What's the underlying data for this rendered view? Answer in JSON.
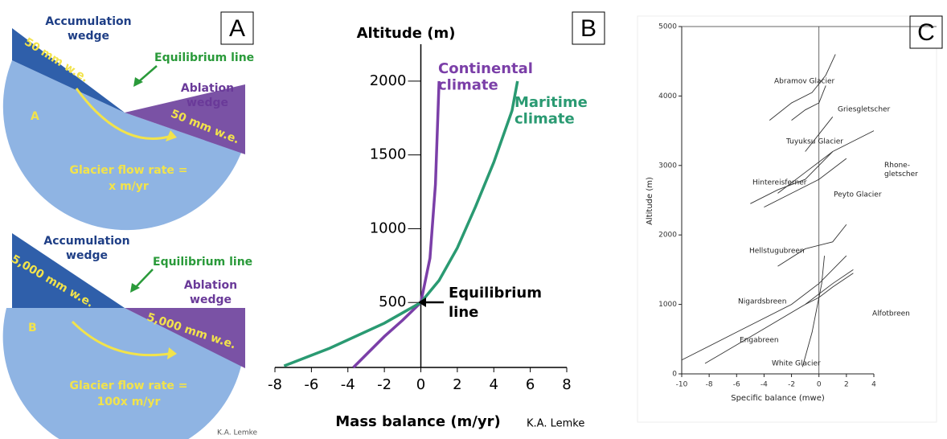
{
  "panel_labels": [
    "A",
    "B",
    "C"
  ],
  "panel_a": {
    "top": {
      "accumulation": [
        "Accumulation",
        "wedge"
      ],
      "accumulation_amount": "50 mm w.e.",
      "equilibrium": "Equilibrium line",
      "ablation": [
        "Ablation",
        "wedge"
      ],
      "ablation_amount": "50 mm w.e.",
      "letter": "A",
      "flow": [
        "Glacier flow rate =",
        "x m/yr"
      ]
    },
    "bottom": {
      "accumulation": [
        "Accumulation",
        "wedge"
      ],
      "accumulation_amount": "5,000 mm w.e.",
      "equilibrium": "Equilibrium line",
      "ablation": [
        "Ablation",
        "wedge"
      ],
      "ablation_amount": "5,000 mm w.e.",
      "letter": "B",
      "flow": [
        "Glacier flow rate =",
        "100x m/yr"
      ]
    },
    "credit": "K.A. Lemke"
  },
  "chart_data": [
    {
      "type": "line",
      "y_label": "Altitude (m)",
      "x_label": "Mass balance (m/yr)",
      "credit": "K.A. Lemke",
      "annotation": [
        "Equilibrium",
        "line"
      ],
      "xlim": [
        -8,
        8
      ],
      "ylim": [
        60,
        2250
      ],
      "xticks": [
        -8,
        -6,
        -4,
        -2,
        0,
        2,
        4,
        6,
        8
      ],
      "yticks": [
        500,
        1000,
        1500,
        2000
      ],
      "series": [
        {
          "name": "Continental climate",
          "color": "#7b3fa8",
          "x": [
            -3.7,
            -2,
            -1,
            0,
            0.5,
            0.8,
            1
          ],
          "values": [
            60,
            270,
            380,
            500,
            800,
            1300,
            2000
          ]
        },
        {
          "name": "Maritime climate",
          "color": "#2a9a72",
          "x": [
            -7.5,
            -5,
            -2,
            0,
            1,
            2,
            3,
            4,
            5,
            5.3
          ],
          "values": [
            70,
            190,
            360,
            500,
            650,
            870,
            1150,
            1450,
            1800,
            2000
          ]
        }
      ]
    },
    {
      "type": "line",
      "y_label": "Altitude (m)",
      "x_label": "Specific balance (mwe)",
      "xlim": [
        -10,
        4
      ],
      "ylim": [
        0,
        5000
      ],
      "xticks": [
        -10,
        -8,
        -6,
        -4,
        -2,
        0,
        2,
        4
      ],
      "yticks": [
        0,
        1000,
        2000,
        3000,
        4000,
        5000
      ],
      "series": [
        {
          "name": "Abramov Glacier",
          "color": "#333333",
          "x": [
            -3.6,
            -2,
            -0.5,
            0.5,
            1.2
          ],
          "values": [
            3650,
            3900,
            4050,
            4300,
            4600
          ]
        },
        {
          "name": "Tuyuksu Glacier",
          "color": "#333333",
          "x": [
            -2,
            -1,
            0,
            0.5
          ],
          "values": [
            3650,
            3800,
            3900,
            4150
          ]
        },
        {
          "name": "Griesgletscher",
          "color": "#333333",
          "x": [
            -1,
            0,
            1
          ],
          "values": [
            3200,
            3450,
            3700
          ]
        },
        {
          "name": "Rhone-gletscher",
          "color": "#333333",
          "x": [
            -3,
            -1,
            1,
            4
          ],
          "values": [
            2600,
            2900,
            3200,
            3500
          ]
        },
        {
          "name": "Hintereisferner",
          "color": "#333333",
          "x": [
            -5,
            -3,
            -1,
            0,
            1
          ],
          "values": [
            2450,
            2650,
            2800,
            3000,
            3200
          ]
        },
        {
          "name": "Peyto Glacier",
          "color": "#333333",
          "x": [
            -4,
            -2,
            0,
            2
          ],
          "values": [
            2400,
            2600,
            2800,
            3100
          ]
        },
        {
          "name": "Hellstugubreen",
          "color": "#333333",
          "x": [
            -3,
            -1,
            1,
            2
          ],
          "values": [
            1550,
            1800,
            1900,
            2150
          ]
        },
        {
          "name": "Nigardsbreen",
          "color": "#333333",
          "x": [
            -8.3,
            -4,
            -1,
            1,
            2.5
          ],
          "values": [
            150,
            650,
            1000,
            1300,
            1500
          ]
        },
        {
          "name": "Engabreen",
          "color": "#333333",
          "x": [
            -10,
            -6,
            -2,
            0,
            2
          ],
          "values": [
            200,
            600,
            1000,
            1300,
            1700
          ]
        },
        {
          "name": "Alfotbreen",
          "color": "#333333",
          "x": [
            -1,
            0,
            1,
            2.5
          ],
          "values": [
            1000,
            1100,
            1250,
            1450
          ]
        },
        {
          "name": "White Glacier",
          "color": "#333333",
          "x": [
            -1.2,
            -0.5,
            0.2,
            0.4
          ],
          "values": [
            100,
            600,
            1300,
            1700
          ]
        }
      ]
    }
  ]
}
